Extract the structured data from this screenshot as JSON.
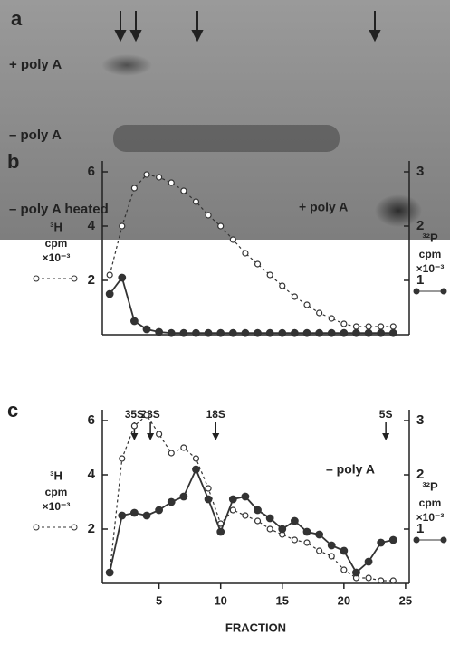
{
  "panel_a": {
    "label": "a",
    "lanes": [
      "+ poly A",
      "– poly A",
      "– poly A heated"
    ]
  },
  "chart_data": [
    {
      "type": "line",
      "panel": "b",
      "annotation": "+ poly A",
      "ylabel": "cpm",
      "yunit": "×10⁻³",
      "y2label": "cpm",
      "y2unit": "×10⁻³",
      "x": [
        1,
        2,
        3,
        4,
        5,
        6,
        7,
        8,
        9,
        10,
        11,
        12,
        13,
        14,
        15,
        16,
        17,
        18,
        19,
        20,
        21,
        22,
        23,
        24
      ],
      "xlim": [
        0.4,
        25.3
      ],
      "ylim": [
        0,
        6
      ],
      "yticks": [
        2,
        4,
        6
      ],
      "y2lim": [
        0,
        3
      ],
      "y2ticks": [
        1,
        2,
        3
      ],
      "series": [
        {
          "name": "³H",
          "color": "#333333",
          "marker": "open",
          "dashed": true,
          "values": [
            2.2,
            4.0,
            5.4,
            5.9,
            5.8,
            5.6,
            5.3,
            4.9,
            4.4,
            4.0,
            3.5,
            3.0,
            2.6,
            2.2,
            1.8,
            1.4,
            1.1,
            0.8,
            0.6,
            0.4,
            0.3,
            0.3,
            0.3,
            0.3
          ]
        },
        {
          "name": "³²P",
          "color": "#333333",
          "marker": "filled",
          "dashed": false,
          "axis": "y2",
          "values": [
            0.75,
            1.05,
            0.25,
            0.1,
            0.05,
            0.03,
            0.03,
            0.03,
            0.03,
            0.03,
            0.03,
            0.03,
            0.03,
            0.03,
            0.03,
            0.03,
            0.03,
            0.03,
            0.03,
            0.03,
            0.03,
            0.03,
            0.03,
            0.03
          ]
        }
      ]
    },
    {
      "type": "line",
      "panel": "c",
      "annotation": "– poly A",
      "ylabel": "cpm",
      "yunit": "×10⁻³",
      "y2label": "cpm",
      "y2unit": "×10⁻³",
      "xlabel": "FRACTION",
      "x": [
        1,
        2,
        3,
        4,
        5,
        6,
        7,
        8,
        9,
        10,
        11,
        12,
        13,
        14,
        15,
        16,
        17,
        18,
        19,
        20,
        21,
        22,
        23,
        24
      ],
      "xlim": [
        0.4,
        25.3
      ],
      "xticks": [
        5,
        10,
        15,
        20,
        25
      ],
      "ylim": [
        0,
        6
      ],
      "yticks": [
        2,
        4,
        6
      ],
      "y2lim": [
        0,
        3
      ],
      "y2ticks": [
        1,
        2,
        3
      ],
      "markers": [
        {
          "label": "35S",
          "x": 3
        },
        {
          "label": "28S",
          "x": 4.3
        },
        {
          "label": "18S",
          "x": 9.6
        },
        {
          "label": "5S",
          "x": 23.4
        }
      ],
      "series": [
        {
          "name": "³H",
          "color": "#333333",
          "marker": "open",
          "dashed": true,
          "values": [
            0.4,
            4.6,
            5.8,
            6.2,
            5.5,
            4.8,
            5.0,
            4.6,
            3.5,
            2.2,
            2.7,
            2.5,
            2.3,
            2.0,
            1.8,
            1.6,
            1.5,
            1.2,
            1.0,
            0.5,
            0.2,
            0.2,
            0.1,
            0.1
          ]
        },
        {
          "name": "³²P",
          "color": "#333333",
          "marker": "filled",
          "dashed": false,
          "axis": "y2",
          "values": [
            0.2,
            1.25,
            1.3,
            1.25,
            1.35,
            1.5,
            1.6,
            2.1,
            1.55,
            0.95,
            1.55,
            1.6,
            1.35,
            1.2,
            1.0,
            1.15,
            0.95,
            0.9,
            0.7,
            0.6,
            0.2,
            0.4,
            0.75,
            0.8
          ]
        }
      ]
    }
  ]
}
